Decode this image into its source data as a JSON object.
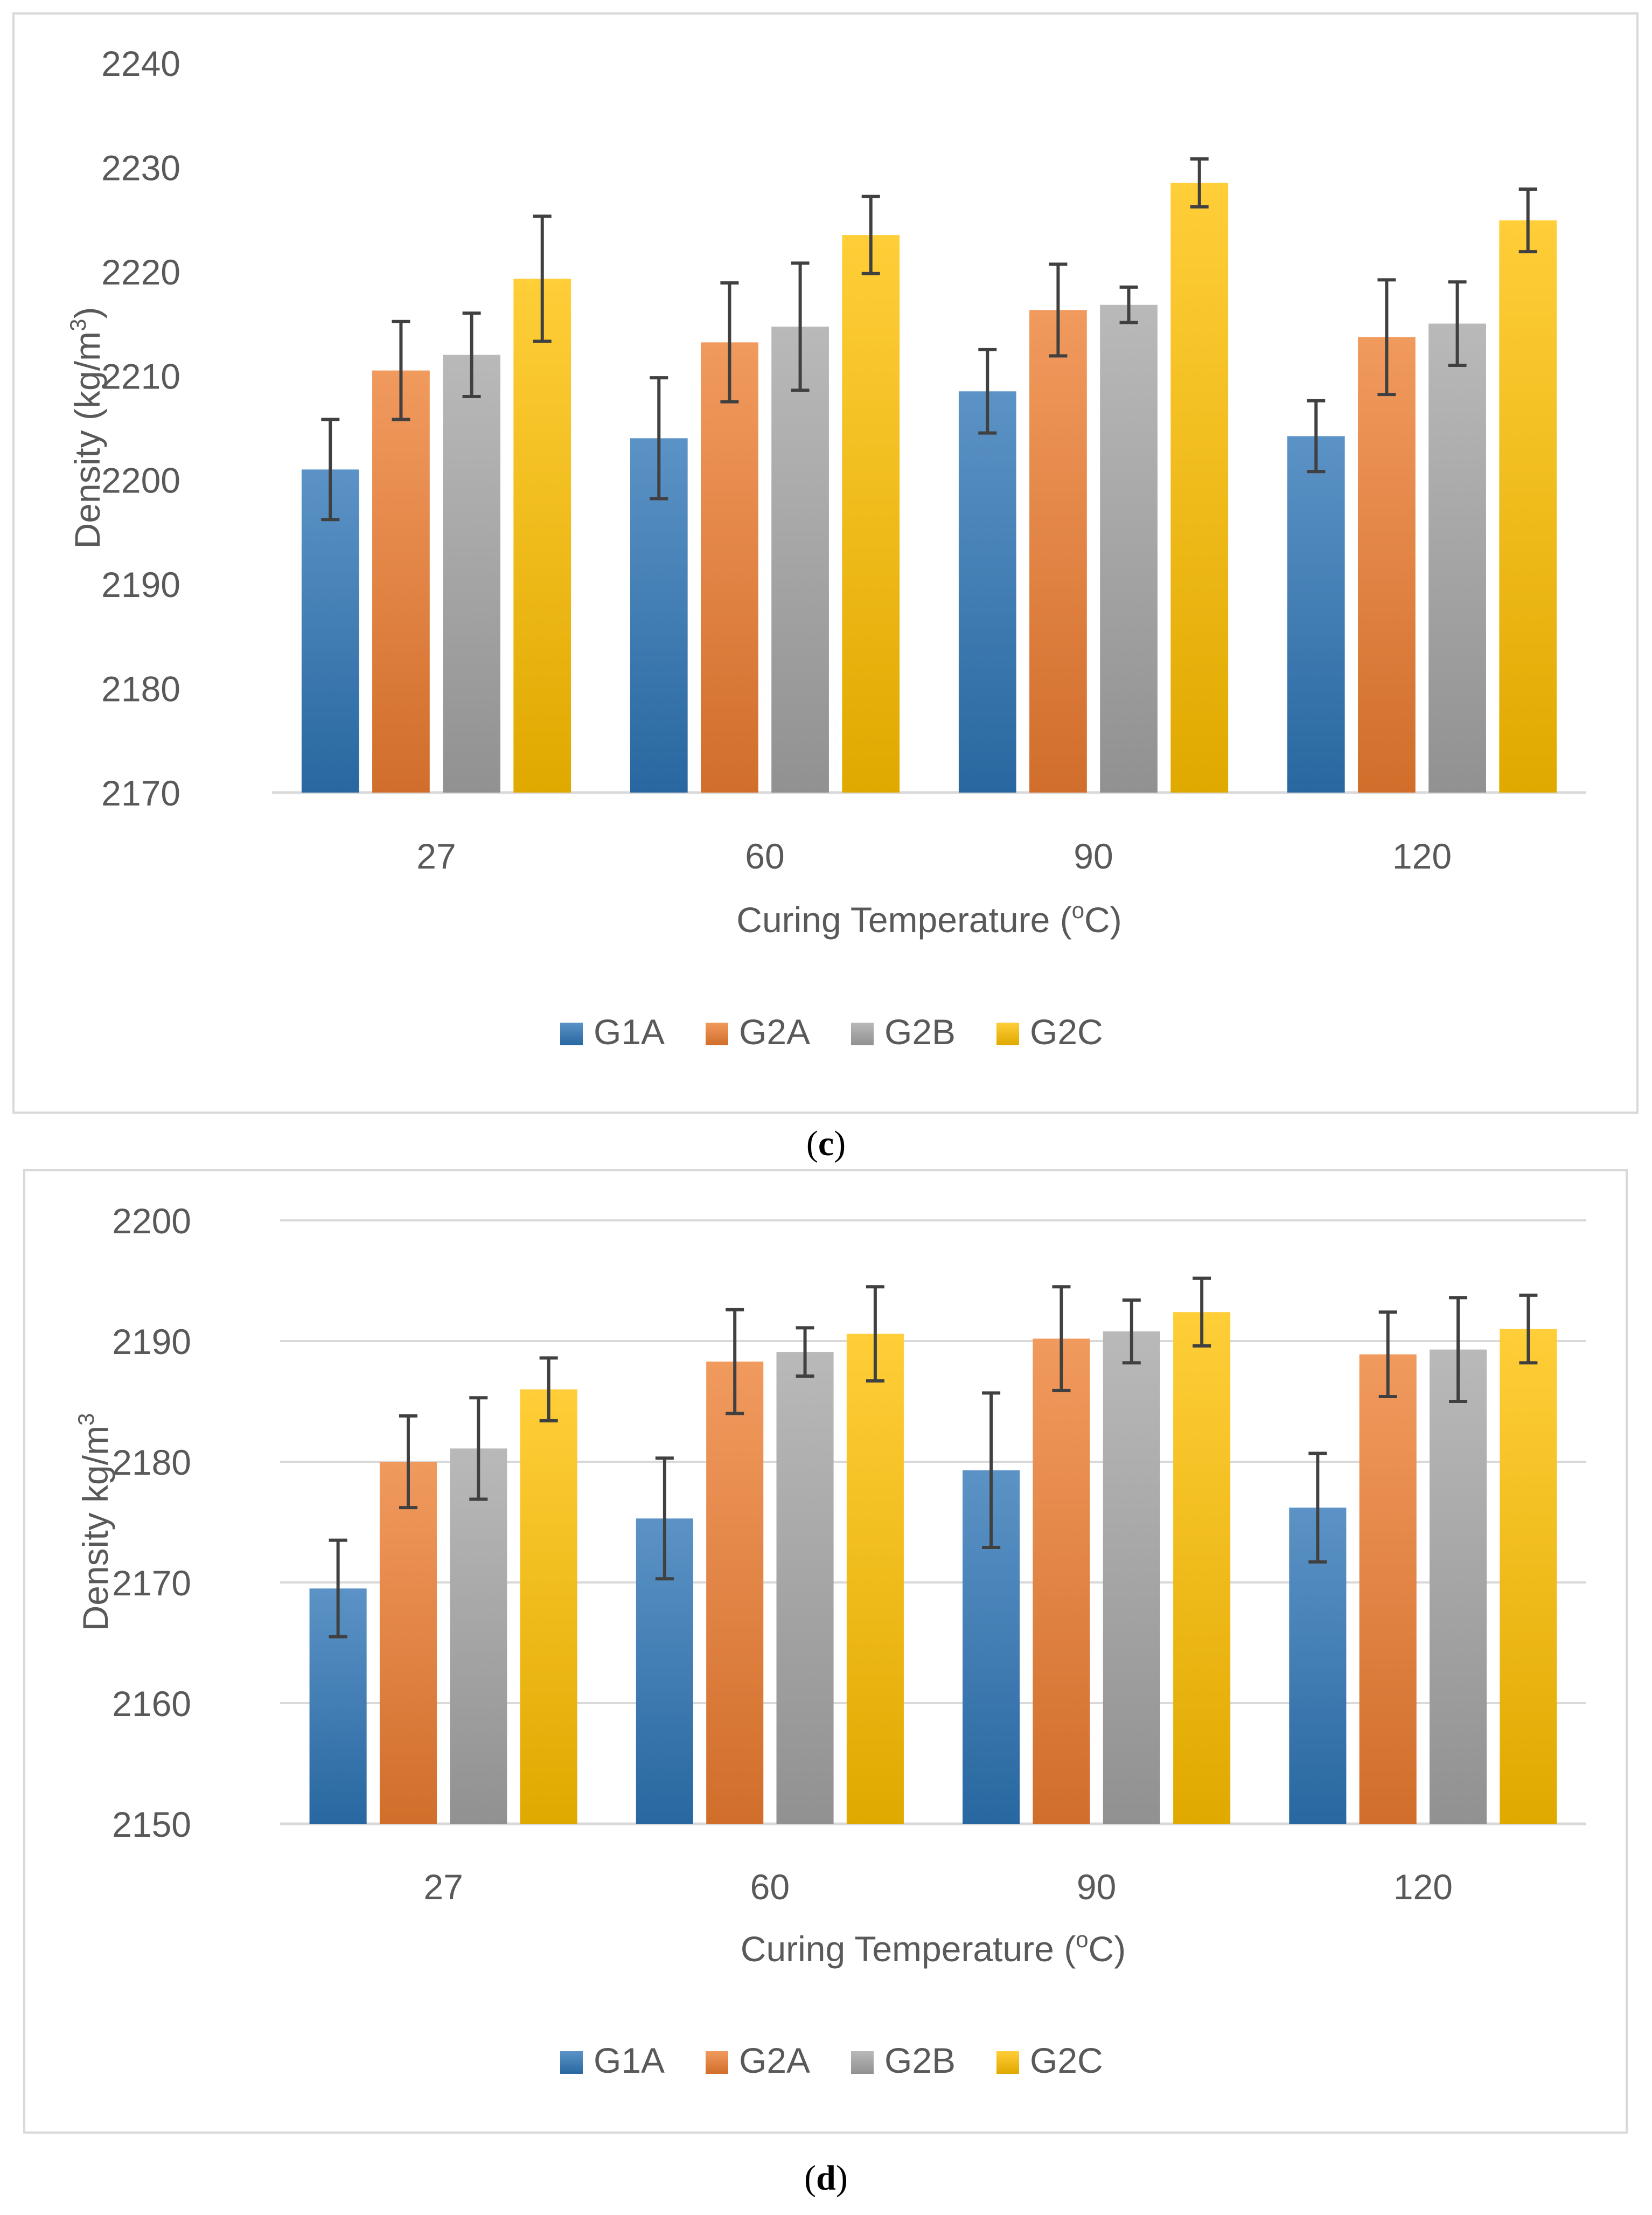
{
  "colors": {
    "G1A": "#2E75B6",
    "G2A": "#ED7D31",
    "G2B": "#A5A5A5",
    "G2C": "#FFC000",
    "axis_text": "#595959",
    "grid": "#D9D9D9",
    "frame": "#D9D9D9",
    "error_bar": "#404040"
  },
  "chart_data": [
    {
      "type": "bar",
      "panel_label": "c",
      "title": "",
      "xlabel": "Curing Temperature (",
      "xlabel_sup": "o",
      "xlabel_tail": "C)",
      "ylabel": "Density (kg/m",
      "ylabel_sup": "3",
      "ylabel_tail": ")",
      "categories": [
        "27",
        "60",
        "90",
        "120"
      ],
      "ylim": [
        2170,
        2240
      ],
      "ytick_step": 10,
      "grid": false,
      "legend": "bottom",
      "series": [
        {
          "name": "G1A",
          "values": [
            2201,
            2204,
            2208.5,
            2204.2
          ],
          "errors": [
            4.8,
            5.8,
            4,
            3.4
          ]
        },
        {
          "name": "G2A",
          "values": [
            2210.5,
            2213.2,
            2216.3,
            2213.7
          ],
          "errors": [
            4.7,
            5.7,
            4.4,
            5.5
          ]
        },
        {
          "name": "G2B",
          "values": [
            2212,
            2214.7,
            2216.8,
            2215
          ],
          "errors": [
            4,
            6.1,
            1.7,
            4
          ]
        },
        {
          "name": "G2C",
          "values": [
            2219.3,
            2223.5,
            2228.5,
            2224.9
          ],
          "errors": [
            6,
            3.7,
            2.3,
            3
          ]
        }
      ]
    },
    {
      "type": "bar",
      "panel_label": "d",
      "title": "",
      "xlabel": "Curing Temperature (",
      "xlabel_sup": "o",
      "xlabel_tail": "C)",
      "ylabel": "Density kg/m",
      "ylabel_sup": "3",
      "ylabel_tail": "",
      "categories": [
        "27",
        "60",
        "90",
        "120"
      ],
      "ylim": [
        2150,
        2200
      ],
      "ytick_step": 10,
      "grid": true,
      "legend": "bottom",
      "series": [
        {
          "name": "G1A",
          "values": [
            2169.5,
            2175.3,
            2179.3,
            2176.2
          ],
          "errors": [
            4,
            5,
            6.4,
            4.5
          ]
        },
        {
          "name": "G2A",
          "values": [
            2180,
            2188.3,
            2190.2,
            2188.9
          ],
          "errors": [
            3.8,
            4.3,
            4.3,
            3.5
          ]
        },
        {
          "name": "G2B",
          "values": [
            2181.1,
            2189.1,
            2190.8,
            2189.3
          ],
          "errors": [
            4.2,
            2,
            2.6,
            4.3
          ]
        },
        {
          "name": "G2C",
          "values": [
            2186,
            2190.6,
            2192.4,
            2191
          ],
          "errors": [
            2.6,
            3.9,
            2.8,
            2.8
          ]
        }
      ]
    }
  ]
}
